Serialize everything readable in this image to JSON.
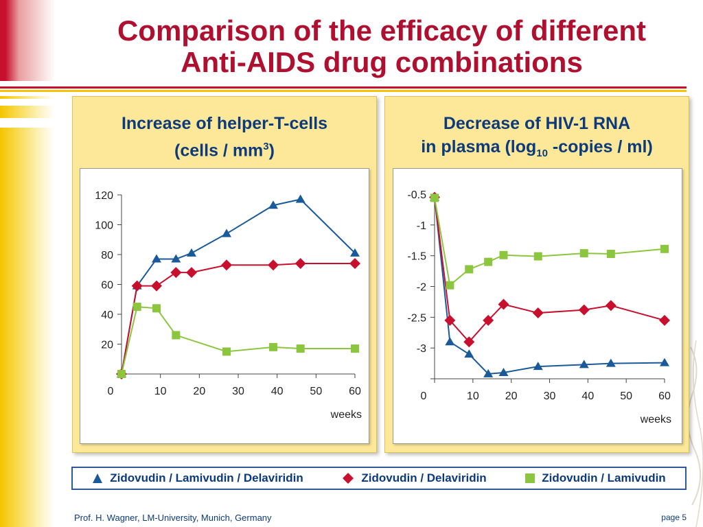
{
  "slide": {
    "title_line1": "Comparison of the efficacy of different",
    "title_line2": "Anti-AIDS drug combinations",
    "footer_left": "Prof. H. Wagner, LM-University, Munich, Germany",
    "footer_right": "page 5"
  },
  "colors": {
    "title": "#b01030",
    "heading": "#0c3a7a",
    "triple": "#1a5a9a",
    "zid_del": "#c8102e",
    "zid_lam": "#8cc63f",
    "panel": "#fde89a"
  },
  "panels": [
    {
      "title_line1": "Increase of helper-T-cells",
      "title_line2_pre": "(cells / mm",
      "title_line2_sup": "3",
      "title_line2_post": ")"
    },
    {
      "title_line1": "Decrease of HIV-1 RNA",
      "title_line2_pre": "in plasma (log",
      "title_line2_sub": "10",
      "title_line2_post": " -copies / ml)"
    }
  ],
  "legend": [
    {
      "label": "Zidovudin / Lamivudin / Delaviridin",
      "marker": "triangle",
      "color": "#1a5a9a"
    },
    {
      "label": "Zidovudin / Delaviridin",
      "marker": "diamond",
      "color": "#c8102e"
    },
    {
      "label": "Zidovudin / Lamivudin",
      "marker": "square",
      "color": "#8cc63f"
    }
  ],
  "chart_data": [
    {
      "type": "line",
      "title": "Increase of helper-T-cells (cells / mm3)",
      "xlabel": "weeks",
      "ylabel": "",
      "xlim": [
        0,
        60
      ],
      "ylim": [
        0,
        120
      ],
      "x_ticks": [
        0,
        10,
        20,
        30,
        40,
        50,
        60
      ],
      "y_ticks": [
        20,
        40,
        60,
        80,
        100,
        120
      ],
      "y_tick_labels": [
        "20",
        "40",
        "60",
        "80",
        "100",
        "120"
      ],
      "grid": false,
      "series": [
        {
          "name": "Zidovudin / Lamivudin / Delaviridin",
          "marker": "triangle",
          "color": "#1a5a9a",
          "x": [
            0,
            4,
            9,
            14,
            18,
            27,
            39,
            46,
            60
          ],
          "y": [
            0,
            59,
            77,
            77,
            81,
            94,
            113,
            117,
            81
          ]
        },
        {
          "name": "Zidovudin / Delaviridin",
          "marker": "diamond",
          "color": "#c8102e",
          "x": [
            0,
            4,
            9,
            14,
            18,
            27,
            39,
            46,
            60
          ],
          "y": [
            0,
            59,
            59,
            68,
            68,
            73,
            73,
            74,
            74
          ]
        },
        {
          "name": "Zidovudin / Lamivudin",
          "marker": "square",
          "color": "#8cc63f",
          "x": [
            0,
            4,
            9,
            14,
            27,
            39,
            46,
            60
          ],
          "y": [
            0,
            45,
            44,
            26,
            15,
            18,
            17,
            17
          ]
        }
      ]
    },
    {
      "type": "line",
      "title": "Decrease of HIV-1 RNA in plasma (log10 -copies / ml)",
      "xlabel": "weeks",
      "ylabel": "",
      "xlim": [
        0,
        60
      ],
      "ylim": [
        -3.5,
        -0.5
      ],
      "x_ticks": [
        0,
        10,
        20,
        30,
        40,
        50,
        60
      ],
      "y_ticks": [
        -0.5,
        -1,
        -1.5,
        -2,
        -2.5,
        -3
      ],
      "y_tick_labels": [
        "-0.5",
        "-1",
        "-1.5",
        "-2",
        "-2.5",
        "-3"
      ],
      "grid": false,
      "series": [
        {
          "name": "Zidovudin / Lamivudin / Delaviridin",
          "marker": "triangle",
          "color": "#1a5a9a",
          "x": [
            0,
            4,
            9,
            14,
            18,
            27,
            39,
            46,
            60
          ],
          "y": [
            -0.55,
            -2.9,
            -3.1,
            -3.42,
            -3.4,
            -3.3,
            -3.27,
            -3.25,
            -3.24
          ]
        },
        {
          "name": "Zidovudin / Delaviridin",
          "marker": "diamond",
          "color": "#c8102e",
          "x": [
            0,
            4,
            9,
            14,
            18,
            27,
            39,
            46,
            60
          ],
          "y": [
            -0.55,
            -2.55,
            -2.9,
            -2.55,
            -2.29,
            -2.43,
            -2.38,
            -2.31,
            -2.55
          ]
        },
        {
          "name": "Zidovudin / Lamivudin",
          "marker": "square",
          "color": "#8cc63f",
          "x": [
            0,
            4,
            9,
            14,
            18,
            27,
            39,
            46,
            60
          ],
          "y": [
            -0.56,
            -1.98,
            -1.72,
            -1.6,
            -1.49,
            -1.51,
            -1.46,
            -1.47,
            -1.39
          ]
        }
      ]
    }
  ]
}
